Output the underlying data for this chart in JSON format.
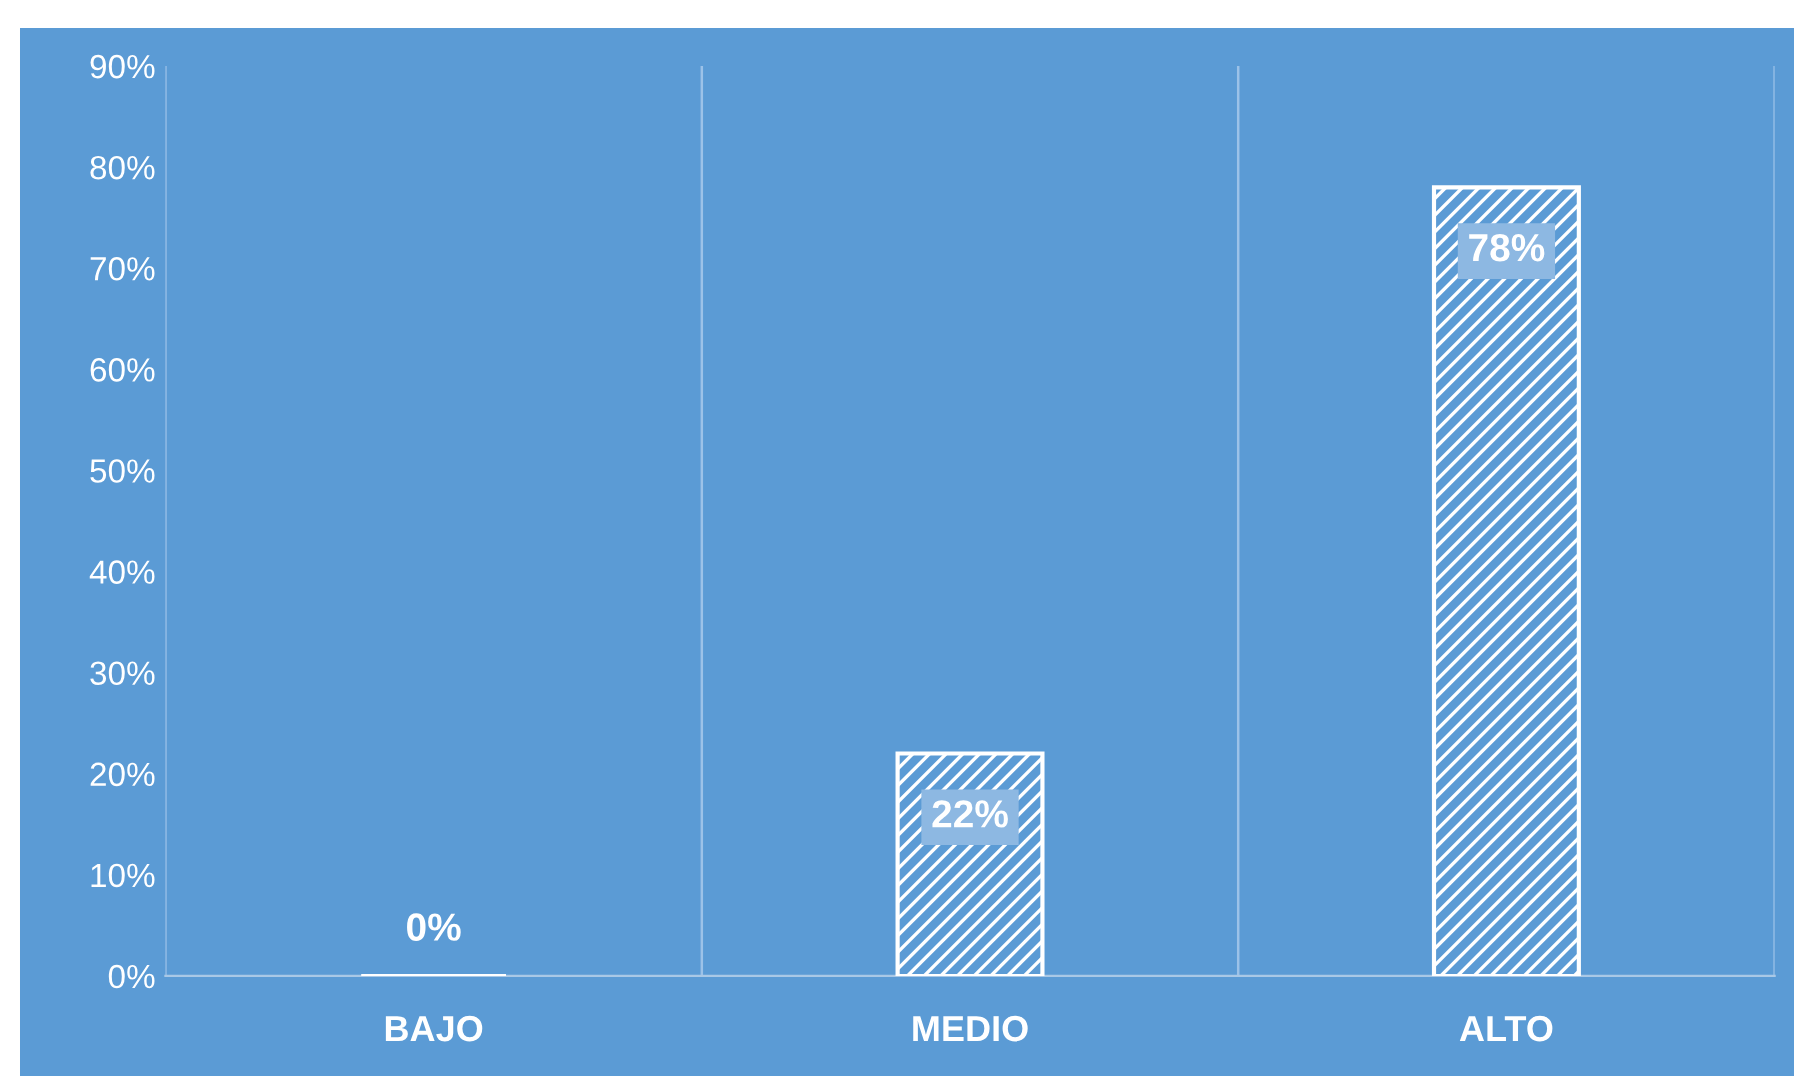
{
  "chart_data": {
    "type": "bar",
    "categories": [
      "BAJO",
      "MEDIO",
      "ALTO"
    ],
    "values": [
      0,
      22,
      78
    ],
    "color": "#ffffff",
    "value_labels": [
      "0%",
      "22%",
      "78%"
    ],
    "ylim": [
      0,
      90
    ],
    "yticks": [
      {
        "value": 0,
        "label": "0%"
      },
      {
        "value": 10,
        "label": "10%"
      },
      {
        "value": 20,
        "label": "20%"
      },
      {
        "value": 30,
        "label": "30%"
      },
      {
        "value": 40,
        "label": "40%"
      },
      {
        "value": 50,
        "label": "50%"
      },
      {
        "value": 60,
        "label": "60%"
      },
      {
        "value": 70,
        "label": "70%"
      },
      {
        "value": 80,
        "label": "80%"
      },
      {
        "value": 90,
        "label": "90%"
      }
    ],
    "grid": "x",
    "legend": false
  }
}
